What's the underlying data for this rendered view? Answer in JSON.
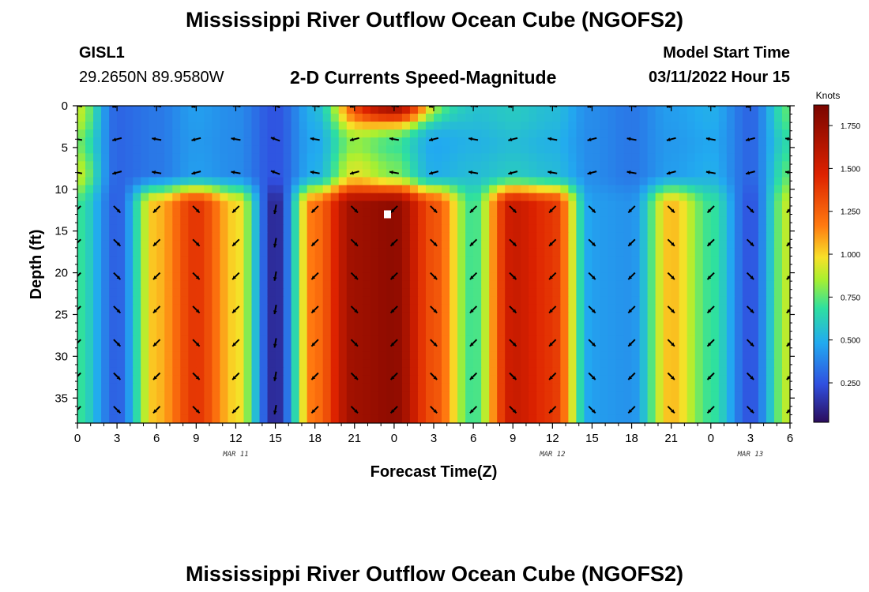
{
  "header": {
    "title": "Mississippi River Outflow Ocean Cube (NGOFS2)",
    "station_id": "GISL1",
    "station_coords": "29.2650N  89.9580W",
    "subtitle": "2-D Currents Speed-Magnitude",
    "model_start_label": "Model Start Time",
    "model_start_value": "03/11/2022 Hour 15"
  },
  "footer": {
    "title": "Mississippi River Outflow Ocean Cube (NGOFS2)"
  },
  "chart_data": {
    "type": "heatmap",
    "title": "2-D Currents Speed-Magnitude",
    "xlabel": "Forecast Time(Z)",
    "ylabel": "Depth (ft)",
    "x_ticks": [
      "0",
      "3",
      "6",
      "9",
      "12",
      "15",
      "18",
      "21",
      "0",
      "3",
      "6",
      "9",
      "12",
      "15",
      "18",
      "21",
      "0",
      "3",
      "6"
    ],
    "x_range_hours": [
      0,
      54
    ],
    "date_labels": [
      {
        "text": "MAR 11",
        "hour": 12
      },
      {
        "text": "MAR 12",
        "hour": 36
      },
      {
        "text": "MAR 13",
        "hour": 51
      }
    ],
    "y_ticks": [
      "0",
      "5",
      "10",
      "15",
      "20",
      "25",
      "30",
      "35"
    ],
    "y_range_ft": [
      0,
      38
    ],
    "colorbar": {
      "label": "Knots",
      "ticks": [
        "0.250",
        "0.500",
        "0.750",
        "1.000",
        "1.250",
        "1.500",
        "1.750"
      ],
      "range": [
        0.02,
        1.87
      ]
    },
    "vector_depths_ft": [
      0,
      4,
      8,
      12.4,
      16.4,
      20.4,
      24.4,
      28.4,
      32.4,
      36.4
    ],
    "vector_times_h": [
      0,
      3,
      6,
      9,
      12,
      15,
      18,
      21,
      24,
      27,
      30,
      33,
      36,
      39,
      42,
      45,
      48,
      51,
      54
    ],
    "speed_upper_by_time": [
      0.9,
      0.3,
      0.35,
      0.45,
      0.4,
      0.25,
      0.5,
      0.95,
      0.8,
      0.5,
      0.55,
      0.6,
      0.55,
      0.4,
      0.35,
      0.45,
      0.5,
      0.3,
      0.75
    ],
    "speed_lower_by_time": [
      0.7,
      0.28,
      1.05,
      1.4,
      1.0,
      0.1,
      1.2,
      1.72,
      1.78,
      1.3,
      0.7,
      1.55,
      1.4,
      0.45,
      0.42,
      1.05,
      0.7,
      0.25,
      0.9
    ],
    "marker": {
      "hour": 23.5,
      "depth_ft": 13
    },
    "colors": {
      "scale": [
        "#2b0c5c",
        "#3050e0",
        "#22aaf0",
        "#2ee0a0",
        "#a8f030",
        "#f8e028",
        "#ff7a10",
        "#dd2200",
        "#7a0500"
      ]
    }
  }
}
